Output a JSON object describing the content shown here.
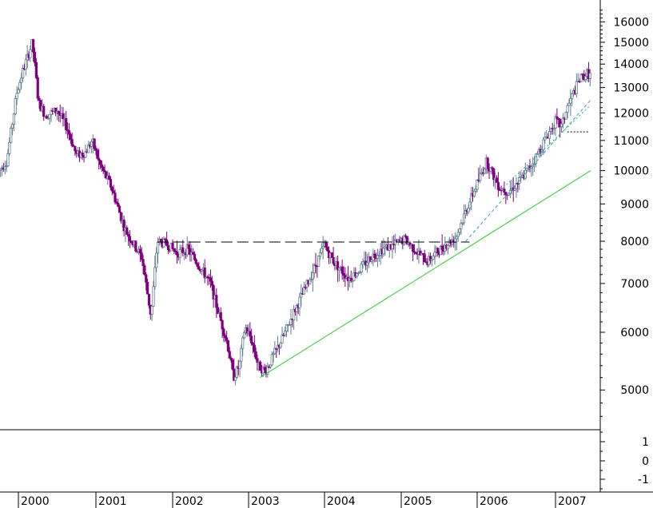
{
  "chart_data": {
    "type": "candlestick",
    "x_unit": "year",
    "y_scale": "log",
    "ylim": [
      4500,
      16800
    ],
    "xlim": [
      1999.75,
      2007.45
    ],
    "y_ticks": [
      5000,
      6000,
      7000,
      8000,
      9000,
      10000,
      11000,
      12000,
      13000,
      14000,
      15000,
      16000
    ],
    "y_tick_labels": [
      "5000",
      "6000",
      "7000",
      "8000",
      "9000",
      "10000",
      "11000",
      "12000",
      "13000",
      "14000",
      "15000",
      "16000"
    ],
    "x_ticks": [
      2000,
      2001,
      2002,
      2003,
      2004,
      2005,
      2006,
      2007
    ],
    "x_tick_labels": [
      "2000",
      "2001",
      "2002",
      "2003",
      "2004",
      "2005",
      "2006",
      "2007"
    ],
    "indicator_ticks": [
      1,
      0,
      -1
    ],
    "indicator_tick_labels": [
      "1",
      "0",
      "-1"
    ],
    "colors": {
      "up": "#5f7f8f",
      "down": "#800080",
      "trend": "#2ec82e",
      "dashed": "#000000"
    },
    "path_points": [
      [
        1999.75,
        10000
      ],
      [
        1999.85,
        10300
      ],
      [
        1999.98,
        12800
      ],
      [
        2000.05,
        13600
      ],
      [
        2000.18,
        15000
      ],
      [
        2000.26,
        12400
      ],
      [
        2000.35,
        11900
      ],
      [
        2000.5,
        12100
      ],
      [
        2000.62,
        11500
      ],
      [
        2000.75,
        10500
      ],
      [
        2000.87,
        10600
      ],
      [
        2000.95,
        11000
      ],
      [
        2001.05,
        10200
      ],
      [
        2001.2,
        9500
      ],
      [
        2001.38,
        8300
      ],
      [
        2001.5,
        7900
      ],
      [
        2001.6,
        7600
      ],
      [
        2001.72,
        6300
      ],
      [
        2001.8,
        8000
      ],
      [
        2001.95,
        7900
      ],
      [
        2002.05,
        7700
      ],
      [
        2002.2,
        7800
      ],
      [
        2002.35,
        7400
      ],
      [
        2002.5,
        7000
      ],
      [
        2002.6,
        6400
      ],
      [
        2002.72,
        5800
      ],
      [
        2002.8,
        5200
      ],
      [
        2002.88,
        5400
      ],
      [
        2002.95,
        6100
      ],
      [
        2003.03,
        5900
      ],
      [
        2003.13,
        5400
      ],
      [
        2003.22,
        5300
      ],
      [
        2003.3,
        5500
      ],
      [
        2003.45,
        5900
      ],
      [
        2003.6,
        6400
      ],
      [
        2003.75,
        6900
      ],
      [
        2003.88,
        7400
      ],
      [
        2004.0,
        7900
      ],
      [
        2004.12,
        7500
      ],
      [
        2004.22,
        7300
      ],
      [
        2004.32,
        7100
      ],
      [
        2004.45,
        7300
      ],
      [
        2004.6,
        7600
      ],
      [
        2004.75,
        7800
      ],
      [
        2004.9,
        7900
      ],
      [
        2005.05,
        8050
      ],
      [
        2005.2,
        7750
      ],
      [
        2005.35,
        7500
      ],
      [
        2005.45,
        7700
      ],
      [
        2005.58,
        7900
      ],
      [
        2005.72,
        8100
      ],
      [
        2005.85,
        8800
      ],
      [
        2006.0,
        9600
      ],
      [
        2006.12,
        10300
      ],
      [
        2006.28,
        9500
      ],
      [
        2006.4,
        9350
      ],
      [
        2006.55,
        9700
      ],
      [
        2006.72,
        10300
      ],
      [
        2006.88,
        11100
      ],
      [
        2007.0,
        11700
      ],
      [
        2007.08,
        11500
      ],
      [
        2007.15,
        12200
      ],
      [
        2007.3,
        13300
      ],
      [
        2007.4,
        13600
      ],
      [
        2007.45,
        13500
      ]
    ],
    "support_trendline": [
      [
        2003.15,
        5200
      ],
      [
        2007.45,
        10000
      ]
    ],
    "resistance_line": [
      [
        2001.8,
        7980
      ],
      [
        2005.9,
        7980
      ]
    ],
    "steep_trendline": [
      [
        2005.85,
        8000
      ],
      [
        2007.45,
        12500
      ]
    ],
    "dotted_trendline": [
      [
        2006.3,
        9400
      ],
      [
        2007.45,
        12300
      ]
    ],
    "short_support": [
      [
        2007.15,
        11300
      ],
      [
        2007.42,
        11300
      ]
    ]
  }
}
